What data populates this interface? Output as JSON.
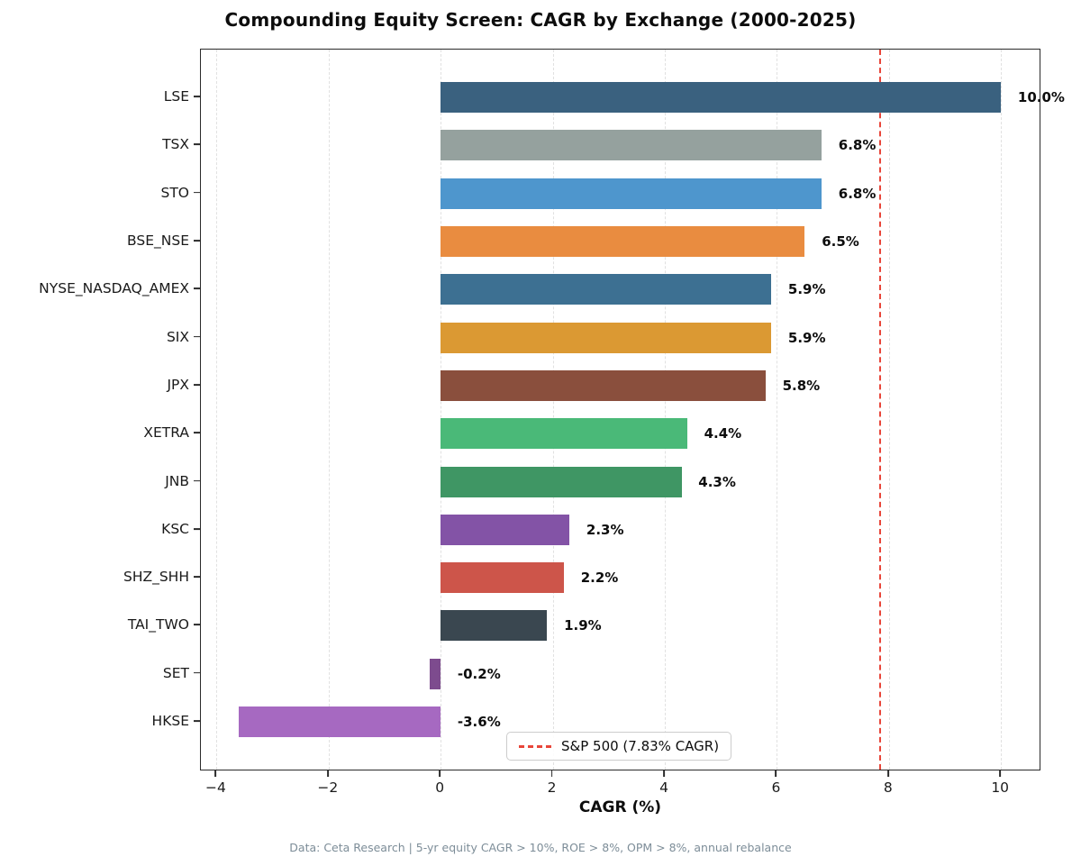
{
  "title": "Compounding Equity Screen: CAGR by Exchange (2000-2025)",
  "footnote": "Data: Ceta Research | 5-yr equity CAGR > 10%, ROE > 8%, OPM > 8%, annual rebalance",
  "chart_data": {
    "type": "bar",
    "orientation": "horizontal",
    "title": "Compounding Equity Screen: CAGR by Exchange (2000-2025)",
    "xlabel": "CAGR (%)",
    "ylabel": "",
    "xlim": [
      -4.28,
      10.72
    ],
    "xticks": [
      -4,
      -2,
      0,
      2,
      4,
      6,
      8,
      10
    ],
    "xtick_labels": [
      "−4",
      "−2",
      "0",
      "2",
      "4",
      "6",
      "8",
      "10"
    ],
    "grid": "vertical dashed gridlines at each xtick",
    "legend_position": "lower center",
    "categories": [
      "LSE",
      "TSX",
      "STO",
      "BSE_NSE",
      "NYSE_NASDAQ_AMEX",
      "SIX",
      "JPX",
      "XETRA",
      "JNB",
      "KSC",
      "SHZ_SHH",
      "TAI_TWO",
      "SET",
      "HKSE"
    ],
    "values": [
      10.0,
      6.8,
      6.8,
      6.5,
      5.9,
      5.9,
      5.8,
      4.4,
      4.3,
      2.3,
      2.2,
      1.9,
      -0.2,
      -3.6
    ],
    "value_labels": [
      "10.0%",
      "6.8%",
      "6.8%",
      "6.5%",
      "5.9%",
      "5.9%",
      "5.8%",
      "4.4%",
      "4.3%",
      "2.3%",
      "2.2%",
      "1.9%",
      "-0.2%",
      "-3.6%"
    ],
    "bar_colors": [
      "#3a617f",
      "#95a19e",
      "#4e96cd",
      "#e98c40",
      "#3d7092",
      "#db9933",
      "#8a4f3d",
      "#4ab978",
      "#3f9664",
      "#8353a6",
      "#cd554a",
      "#3a4750",
      "#7d4b8e",
      "#a669c1"
    ],
    "reference_line": {
      "value": 7.83,
      "label": "S&P 500 (7.83% CAGR)",
      "color": "#e8463a",
      "style": "dashed"
    },
    "colors": {
      "grid": "#e1e1e1",
      "spine": "#2b2b2b",
      "footnote_text": "#7d8d98"
    }
  }
}
